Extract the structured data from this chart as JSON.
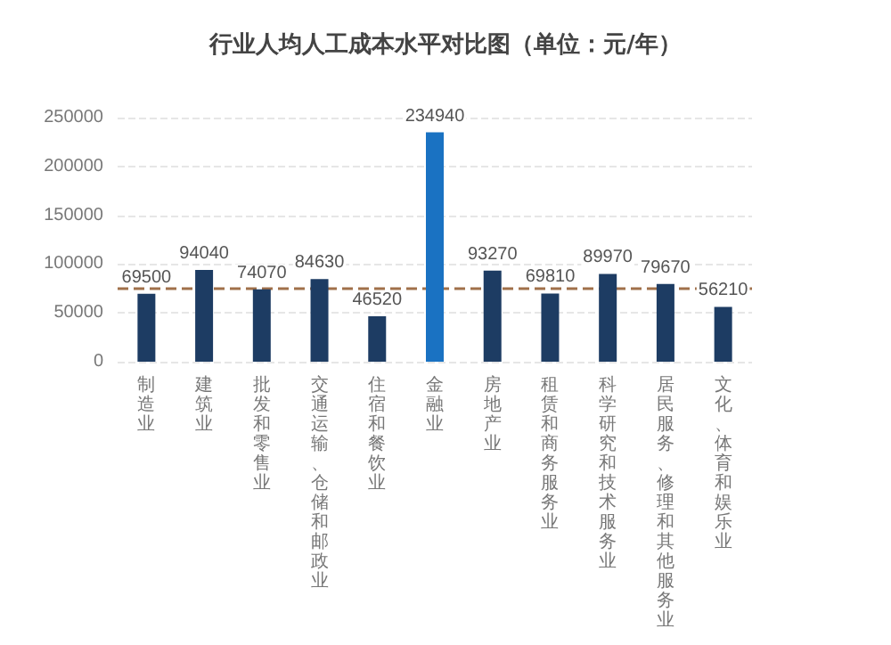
{
  "chart_data": {
    "type": "bar",
    "title": "行业人均人工成本水平对比图（单位：元/年）",
    "categories": [
      "制造业",
      "建筑业",
      "批发和零售业",
      "交通运输、仓储和邮政业",
      "住宿和餐饮业",
      "金融业",
      "房地产业",
      "租赁和商务服务业",
      "科学研究和技术服务业",
      "居民服务、修理和其他服务业",
      "文化、体育和娱乐业"
    ],
    "values": [
      69500,
      94040,
      74070,
      84630,
      46520,
      234940,
      93270,
      69810,
      89970,
      79670,
      56210
    ],
    "colors": [
      "#1d3c63",
      "#1d3c63",
      "#1d3c63",
      "#1d3c63",
      "#1d3c63",
      "#1a72c2",
      "#1d3c63",
      "#1d3c63",
      "#1d3c63",
      "#1d3c63",
      "#1d3c63"
    ],
    "ylim": [
      0,
      250000
    ],
    "yticks": [
      0,
      50000,
      100000,
      150000,
      200000,
      250000
    ],
    "grid": "y",
    "data_labels": true,
    "ref_lines": [
      {
        "axis": "y",
        "value": 76000,
        "color": "#a0704a",
        "line_style": "dashed"
      }
    ]
  }
}
